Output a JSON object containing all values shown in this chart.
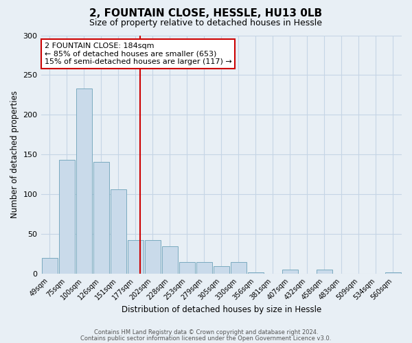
{
  "title": "2, FOUNTAIN CLOSE, HESSLE, HU13 0LB",
  "subtitle": "Size of property relative to detached houses in Hessle",
  "xlabel": "Distribution of detached houses by size in Hessle",
  "ylabel": "Number of detached properties",
  "categories": [
    "49sqm",
    "75sqm",
    "100sqm",
    "126sqm",
    "151sqm",
    "177sqm",
    "202sqm",
    "228sqm",
    "253sqm",
    "279sqm",
    "305sqm",
    "330sqm",
    "356sqm",
    "381sqm",
    "407sqm",
    "432sqm",
    "458sqm",
    "483sqm",
    "509sqm",
    "534sqm",
    "560sqm"
  ],
  "values": [
    20,
    143,
    233,
    141,
    106,
    42,
    42,
    35,
    15,
    15,
    10,
    15,
    2,
    0,
    5,
    0,
    5,
    0,
    0,
    0,
    2
  ],
  "bar_color": "#c9daea",
  "bar_edge_color": "#7aaabf",
  "vline_color": "#cc0000",
  "annotation_text": "2 FOUNTAIN CLOSE: 184sqm\n← 85% of detached houses are smaller (653)\n15% of semi-detached houses are larger (117) →",
  "annotation_box_facecolor": "#ffffff",
  "annotation_box_edgecolor": "#cc0000",
  "ylim": [
    0,
    300
  ],
  "yticks": [
    0,
    50,
    100,
    150,
    200,
    250,
    300
  ],
  "footer1": "Contains HM Land Registry data © Crown copyright and database right 2024.",
  "footer2": "Contains public sector information licensed under the Open Government Licence v3.0.",
  "bg_color": "#e8eff5",
  "plot_bg_color": "#e8eff5",
  "grid_color": "#c5d5e5",
  "title_fontsize": 11,
  "subtitle_fontsize": 9
}
